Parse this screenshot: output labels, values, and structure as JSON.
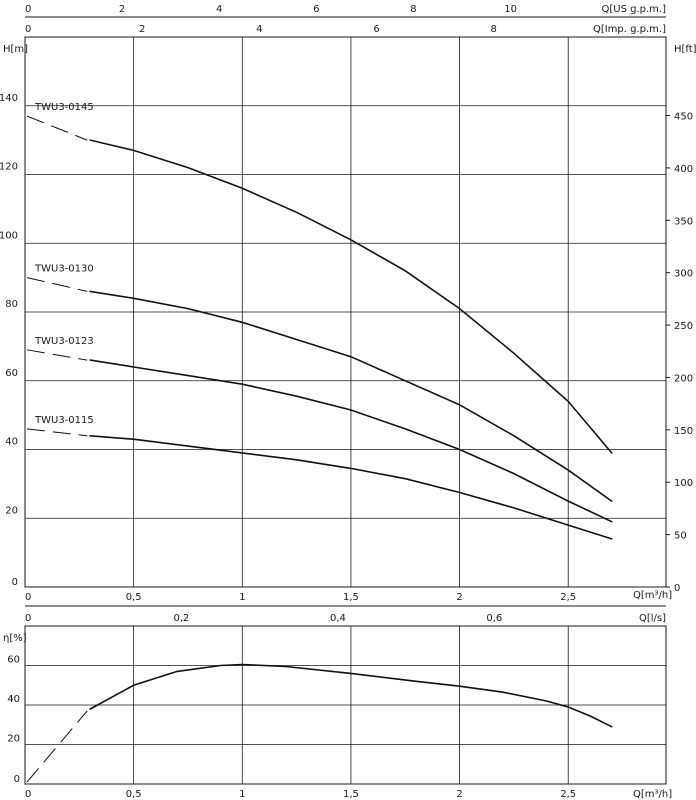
{
  "chart_data": [
    {
      "type": "line",
      "xlabel": "Q[m³/h]",
      "xlim": [
        0,
        2.95
      ],
      "x_ticks": [
        "0",
        "0,5",
        "1",
        "1,5",
        "2",
        "2,5"
      ],
      "top_axes": [
        {
          "label": "Q[US g.p.m.]",
          "ticks": [
            "0",
            "2",
            "4",
            "6",
            "8",
            "10"
          ]
        },
        {
          "label": "Q[Imp. g.p.m.]",
          "ticks": [
            "0",
            "2",
            "4",
            "6",
            "8"
          ]
        }
      ],
      "ylabel": "H[m]",
      "ylim": [
        0,
        160
      ],
      "y_ticks": [
        "0",
        "20",
        "40",
        "60",
        "80",
        "100",
        "120",
        "140"
      ],
      "y2label": "H[ft]",
      "y2_ticks": [
        "0",
        "50",
        "100",
        "150",
        "200",
        "250",
        "300",
        "350",
        "400",
        "450"
      ],
      "grid": true,
      "series": [
        {
          "name": "TWU3-0145",
          "x": [
            0.3,
            0.5,
            0.75,
            1.0,
            1.25,
            1.5,
            1.75,
            2.0,
            2.25,
            2.5,
            2.7
          ],
          "values": [
            130,
            127,
            122,
            116,
            109,
            101,
            92,
            81,
            68,
            54,
            39
          ],
          "dashed_from_y": 137
        },
        {
          "name": "TWU3-0130",
          "x": [
            0.3,
            0.5,
            0.75,
            1.0,
            1.25,
            1.5,
            1.75,
            2.0,
            2.25,
            2.5,
            2.7
          ],
          "values": [
            86,
            84,
            81,
            77,
            72,
            67,
            60,
            53,
            44,
            34,
            25
          ],
          "dashed_from_y": 90
        },
        {
          "name": "TWU3-0123",
          "x": [
            0.3,
            0.5,
            0.75,
            1.0,
            1.25,
            1.5,
            1.75,
            2.0,
            2.25,
            2.5,
            2.7
          ],
          "values": [
            66,
            64,
            61.5,
            59,
            55.5,
            51.5,
            46,
            40,
            33,
            25,
            19
          ],
          "dashed_from_y": 69
        },
        {
          "name": "TWU3-0115",
          "x": [
            0.3,
            0.5,
            0.75,
            1.0,
            1.25,
            1.5,
            1.75,
            2.0,
            2.25,
            2.5,
            2.7
          ],
          "values": [
            44,
            43,
            41,
            39,
            37,
            34.5,
            31.5,
            27.5,
            23,
            18,
            14
          ],
          "dashed_from_y": 46
        }
      ]
    },
    {
      "type": "line",
      "xlabel": "Q[m³/h]",
      "xlim": [
        0,
        2.95
      ],
      "x_ticks": [
        "0",
        "0,5",
        "1",
        "1,5",
        "2",
        "2,5"
      ],
      "top_axes": [
        {
          "label": "Q[l/s]",
          "ticks": [
            "0",
            "0,2",
            "0,4",
            "0,6"
          ]
        }
      ],
      "ylabel": "η[%]",
      "ylim": [
        0,
        80
      ],
      "y_ticks": [
        "0",
        "20",
        "40",
        "60"
      ],
      "grid": true,
      "series": [
        {
          "x": [
            0.3,
            0.5,
            0.7,
            0.9,
            1.0,
            1.2,
            1.5,
            1.8,
            2.0,
            2.2,
            2.4,
            2.5,
            2.6,
            2.7
          ],
          "values": [
            38,
            50,
            57,
            60,
            60.5,
            59.5,
            56,
            52,
            49.5,
            46.5,
            42,
            39,
            34.5,
            29
          ],
          "dashed_start": [
            0,
            0
          ]
        }
      ]
    }
  ]
}
